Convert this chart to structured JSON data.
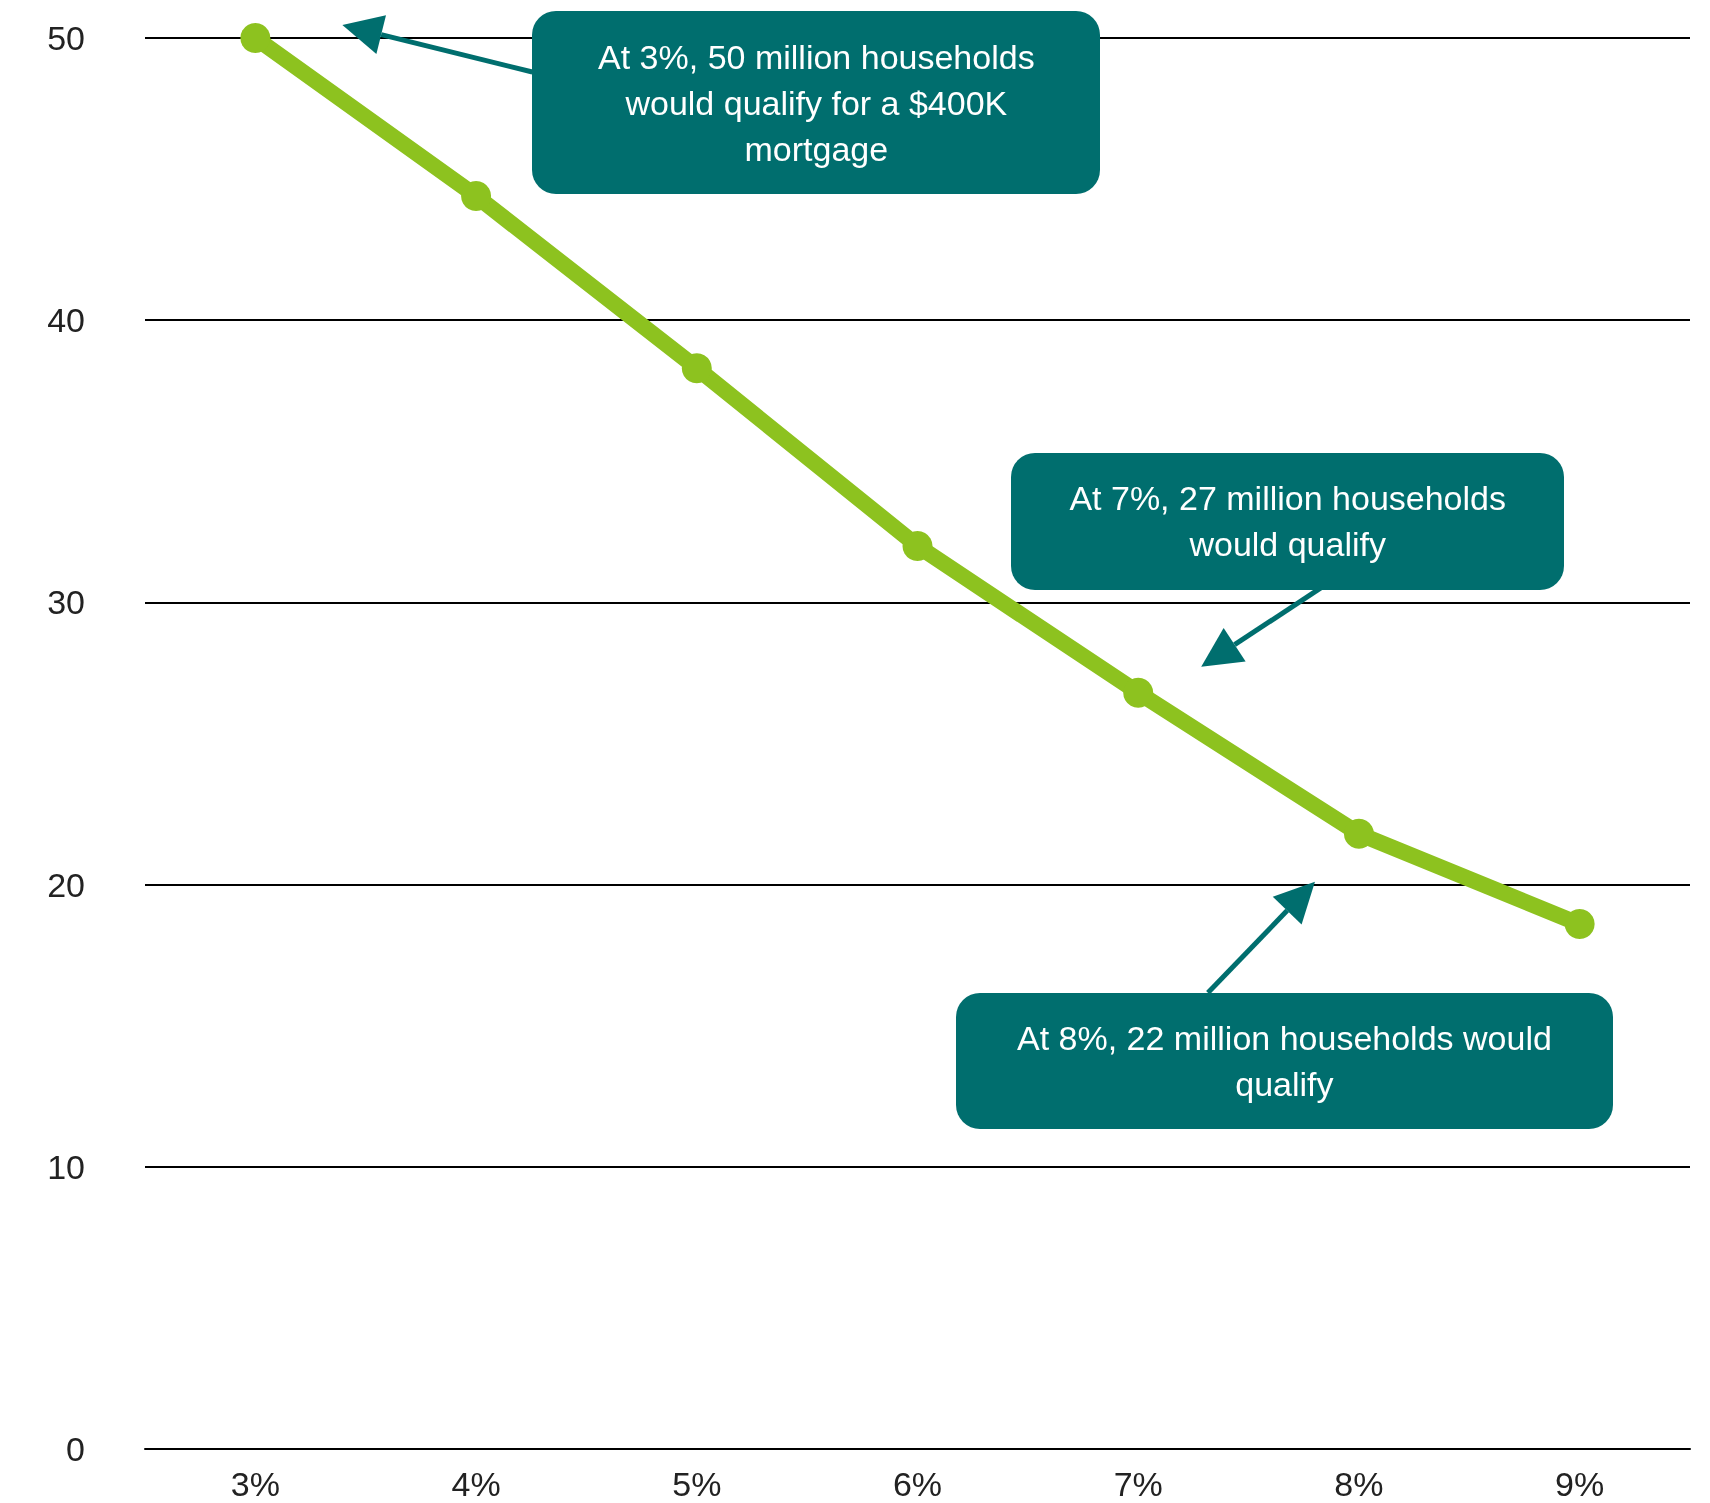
{
  "chart_data": {
    "type": "line",
    "categories": [
      "3%",
      "4%",
      "5%",
      "6%",
      "7%",
      "8%",
      "9%"
    ],
    "series": [
      {
        "color": "#8dc21f",
        "values": [
          50,
          44.4,
          38.3,
          32.0,
          26.8,
          21.8,
          18.6
        ]
      }
    ],
    "ylim": [
      0,
      50
    ],
    "yticks": [
      0,
      10,
      20,
      30,
      40,
      50
    ],
    "grid": "y",
    "marker": "circle",
    "line_style": "solid",
    "annotations": [
      "At 3%, 50 million households would qualify for a $400K mortgage",
      "At 7%, 27 million households would qualify",
      "At 8%, 22 million households would qualify"
    ]
  }
}
